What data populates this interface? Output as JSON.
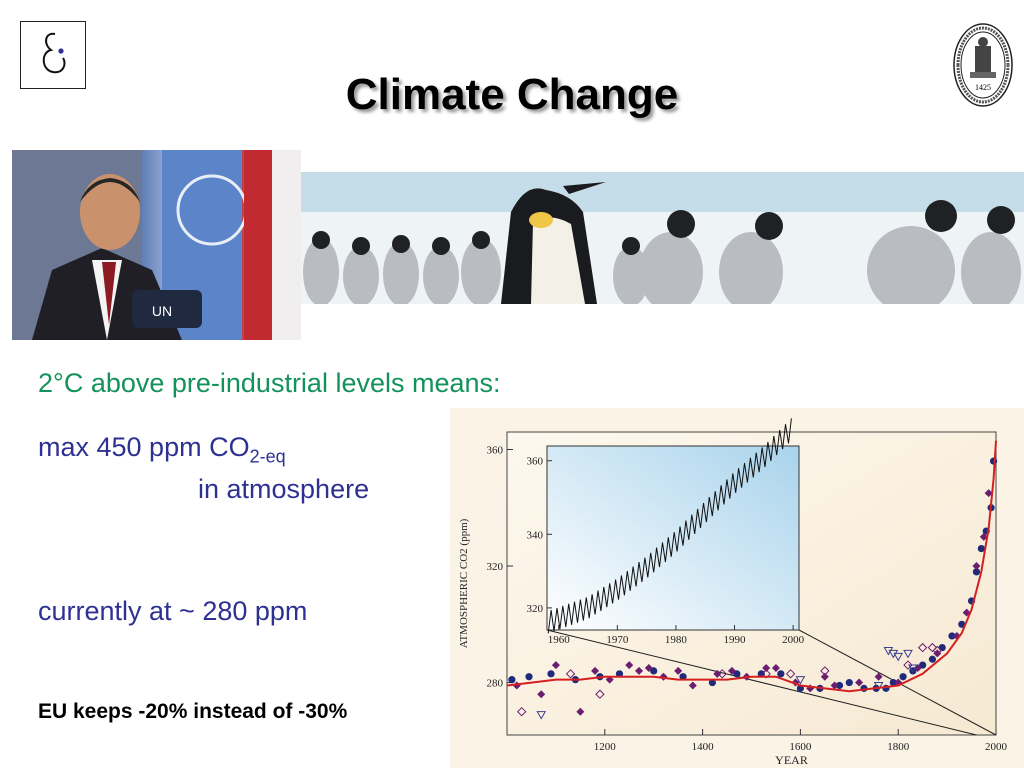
{
  "slide": {
    "title": "Climate Change",
    "bullets": {
      "target": "2°C above pre-industrial levels means:",
      "max_prefix": "max 450 ppm CO",
      "max_sub": "2-eq",
      "max_suffix": "in atmosphere",
      "current": "currently at ~ 280 ppm",
      "eu": "EU keeps  -20% instead of -30%"
    },
    "colors": {
      "text": "#2e3192",
      "green": "#14925b",
      "chart_line": "#d42020",
      "dots": "#1f2a7a",
      "diamonds": "#6b1d6f"
    },
    "photos": {
      "person_flag_text": "UN",
      "seal_year": "1425"
    }
  },
  "chart_data": [
    {
      "type": "scatter",
      "xlabel": "YEAR",
      "ylabel": "ATMOSPHERIC CO2 (ppm)",
      "xticks": [
        1200,
        1400,
        1600,
        1800,
        2000
      ],
      "yticks": [
        280,
        320,
        360
      ],
      "xlim": [
        1000,
        2000
      ],
      "ylim": [
        262,
        366
      ],
      "series": [
        {
          "kind": "dots",
          "x": [
            1010,
            1045,
            1090,
            1140,
            1190,
            1230,
            1300,
            1360,
            1420,
            1470,
            1520,
            1560,
            1600,
            1640,
            1680,
            1700,
            1730,
            1755,
            1775,
            1790,
            1810,
            1830,
            1850,
            1870,
            1890,
            1910,
            1930,
            1950,
            1960,
            1970,
            1980,
            1990,
            1995
          ],
          "y": [
            281,
            282,
            283,
            281,
            282,
            283,
            284,
            282,
            280,
            283,
            283,
            283,
            278,
            278,
            279,
            280,
            278,
            278,
            278,
            280,
            282,
            284,
            286,
            288,
            292,
            296,
            300,
            308,
            318,
            326,
            332,
            340,
            356
          ]
        },
        {
          "kind": "diamonds",
          "x": [
            1020,
            1070,
            1100,
            1150,
            1180,
            1210,
            1250,
            1270,
            1290,
            1320,
            1350,
            1380,
            1430,
            1460,
            1490,
            1530,
            1550,
            1590,
            1620,
            1650,
            1670,
            1720,
            1760,
            1800,
            1840,
            1880,
            1920,
            1940,
            1960,
            1975,
            1985
          ],
          "y": [
            279,
            276,
            286,
            270,
            284,
            281,
            286,
            284,
            285,
            282,
            284,
            279,
            283,
            284,
            282,
            285,
            285,
            280,
            278,
            282,
            279,
            280,
            282,
            280,
            285,
            290,
            296,
            304,
            320,
            330,
            345
          ]
        },
        {
          "kind": "open-diamonds",
          "x": [
            1030,
            1130,
            1190,
            1440,
            1530,
            1580,
            1650,
            1820,
            1850,
            1870,
            1880
          ],
          "y": [
            270,
            283,
            276,
            283,
            283,
            283,
            284,
            286,
            292,
            292,
            291
          ]
        },
        {
          "kind": "open-triangles",
          "x": [
            1070,
            1600,
            1760,
            1780,
            1790,
            1800,
            1820,
            1830
          ],
          "y": [
            269,
            281,
            279,
            291,
            290,
            289,
            290,
            285
          ]
        },
        {
          "kind": "smooth-line",
          "x": [
            1000,
            1050,
            1100,
            1150,
            1200,
            1250,
            1300,
            1350,
            1400,
            1450,
            1500,
            1550,
            1600,
            1650,
            1700,
            1750,
            1800,
            1850,
            1900,
            1930,
            1950,
            1970,
            1985,
            1995,
            2000
          ],
          "y": [
            279,
            280,
            281,
            281,
            282,
            282,
            282,
            281,
            281,
            281,
            282,
            282,
            279,
            278,
            277,
            278,
            279,
            283,
            290,
            297,
            305,
            318,
            333,
            350,
            363
          ]
        }
      ]
    },
    {
      "type": "line",
      "role": "inset",
      "xticks": [
        1960,
        1970,
        1980,
        1990,
        2000
      ],
      "yticks": [
        320,
        340,
        360
      ],
      "xlim": [
        1958,
        2001
      ],
      "ylim": [
        314,
        364
      ],
      "trend": {
        "x": [
          1958,
          1965,
          1970,
          1975,
          1980,
          1985,
          1990,
          1995,
          2000
        ],
        "y": [
          316,
          320,
          325,
          331,
          338,
          346,
          354,
          361,
          369
        ]
      },
      "seasonal_amplitude": 3
    }
  ]
}
